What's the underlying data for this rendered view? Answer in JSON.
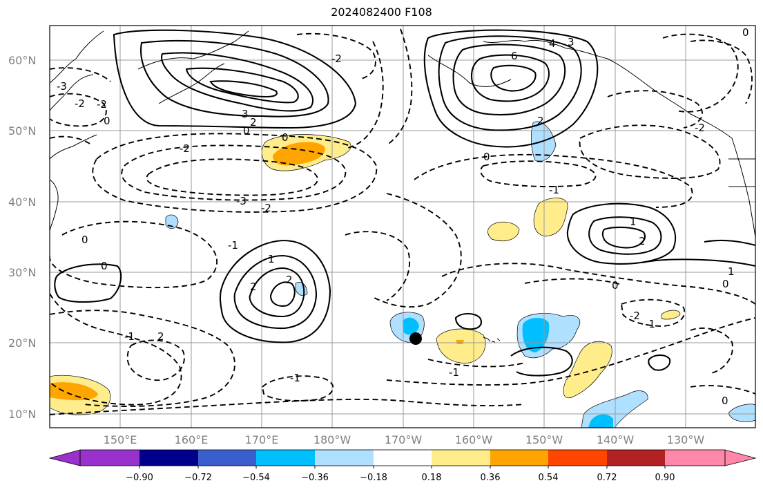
{
  "title": "2024082400 F108",
  "map": {
    "lat_labels": [
      "60°N",
      "50°N",
      "40°N",
      "30°N",
      "20°N",
      "10°N"
    ],
    "lon_labels": [
      "150°E",
      "160°E",
      "170°E",
      "180°W",
      "170°W",
      "160°W",
      "150°W",
      "140°W",
      "130°W"
    ],
    "contour_labels": [
      "6",
      "4",
      "3",
      "3",
      "2",
      "2",
      "0",
      "0",
      "0",
      "0",
      "-2",
      "-2",
      "-3",
      "-2",
      "-2",
      "-1",
      "-1",
      "-1",
      "0",
      "0",
      "1",
      "2",
      "2",
      "1",
      "2",
      "-2",
      "-1",
      "-1",
      "0",
      "0",
      "-1",
      "1",
      "2",
      "-3",
      "-2",
      "0",
      "-2",
      "0"
    ],
    "marker": "typhoon-position-dot"
  },
  "colorbar": {
    "tick_labels": [
      "−0.90",
      "−0.72",
      "−0.54",
      "−0.36",
      "−0.18",
      "0.18",
      "0.36",
      "0.54",
      "0.72",
      "0.90"
    ],
    "colors": [
      "#9932cc",
      "#00008b",
      "#3a5fcd",
      "#00bfff",
      "#b0e0ff",
      "#ffffff",
      "#ffec8b",
      "#ffa500",
      "#ff4500",
      "#b22222",
      "#ff88aa"
    ]
  }
}
